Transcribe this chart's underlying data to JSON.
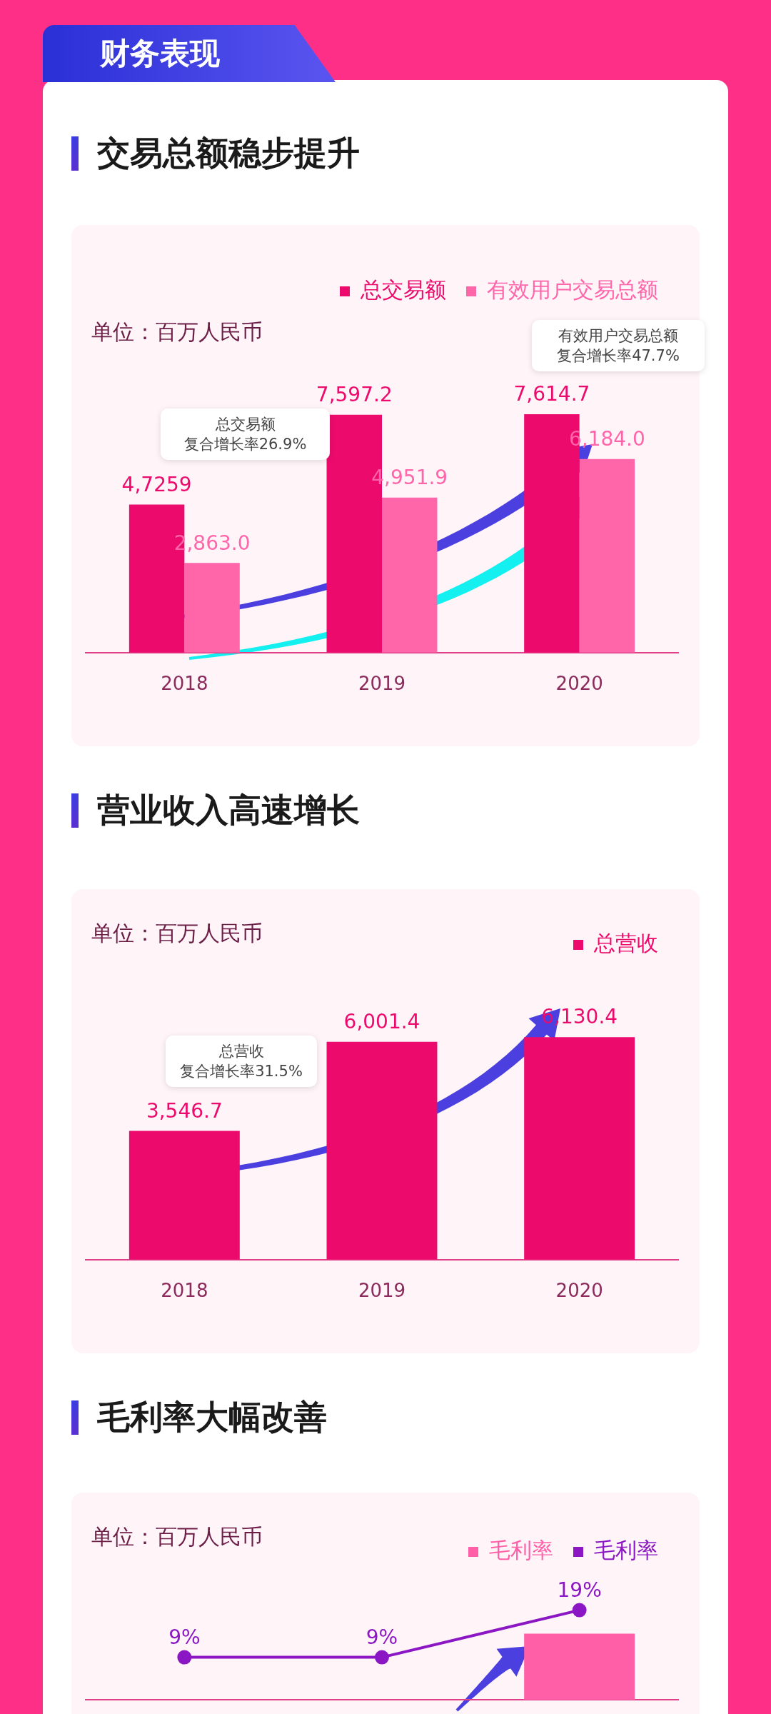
{
  "chart_data": [
    {
      "type": "other",
      "title": "财务表现"
    },
    {
      "type": "bar",
      "title": "交易总额稳步提升",
      "ylabel": "单位：百万人民币",
      "categories": [
        "2018",
        "2019",
        "2020"
      ],
      "legend": "top right",
      "tick_labels": "x",
      "series": [
        {
          "name": "总交易额",
          "color": "#ec0b6c",
          "values": [
            4725.9,
            7597.2,
            7614.7
          ],
          "value_labels": [
            "4,7259",
            "7,597.2",
            "7,614.7"
          ]
        },
        {
          "name": "有效用户交易总额",
          "color": "#ff66aa",
          "values": [
            2863.0,
            4951.9,
            6184.0
          ],
          "value_labels": [
            "2,863.0",
            "4,951.9",
            "6,184.0"
          ]
        }
      ],
      "annotations": [
        "总交易额",
        "复合增长率26.9%",
        "有效用户交易总额",
        "复合增长率47.7%"
      ]
    },
    {
      "type": "bar",
      "title": "营业收入高速增长",
      "ylabel": "单位：百万人民币",
      "categories": [
        "2018",
        "2019",
        "2020"
      ],
      "legend": "top right",
      "tick_labels": "x",
      "series": [
        {
          "name": "总营收",
          "color": "#ec0b6c",
          "values": [
            3546.7,
            6001.4,
            6130.4
          ],
          "value_labels": [
            "3,546.7",
            "6,001.4",
            "6,130.4"
          ]
        }
      ],
      "annotations": [
        "总营收",
        "复合增长率31.5%"
      ]
    },
    {
      "type": "bar",
      "title": "毛利率大幅改善",
      "ylabel": "单位：百万人民币",
      "categories": [
        null,
        null,
        null
      ],
      "legend": "top right",
      "tick_labels": false,
      "series": [
        {
          "name": "毛利率",
          "color": "#ff5fa6",
          "values": [
            null,
            null,
            14
          ]
        },
        {
          "name": "毛利率",
          "type": "line",
          "marker": "circle",
          "color": "#8b17c4",
          "values": [
            9,
            9,
            19
          ],
          "value_labels": [
            "9%",
            "9%",
            "19%"
          ]
        }
      ]
    }
  ]
}
